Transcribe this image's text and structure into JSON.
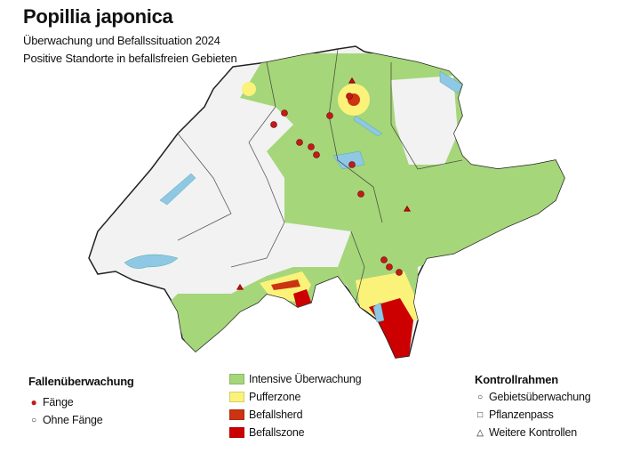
{
  "title": "Popillia japonica",
  "subtitle1": "Überwachung und Befallssituation 2024",
  "subtitle2": "Positive Standorte in befallsfreien Gebieten",
  "colors": {
    "intensive": "#a6d67a",
    "puffer": "#fbf27a",
    "herd": "#cc3311",
    "zone": "#cc0000",
    "white": "#f2f2f2",
    "lake": "#8fc8e4",
    "dot": "#c41a1a"
  },
  "legend": {
    "trap": {
      "heading": "Fallenüberwachung",
      "items": [
        {
          "label": "Fänge",
          "icon": "filled-red-circle"
        },
        {
          "label": "Ohne Fänge",
          "icon": "open-circle"
        }
      ]
    },
    "zones": {
      "items": [
        {
          "label": "Intensive Überwachung",
          "color": "#a6d67a"
        },
        {
          "label": "Pufferzone",
          "color": "#fbf27a"
        },
        {
          "label": "Befallsherd",
          "color": "#cc3311"
        },
        {
          "label": "Befallszone",
          "color": "#cc0000"
        }
      ]
    },
    "control": {
      "heading": "Kontrollrahmen",
      "items": [
        {
          "label": "Gebietsüberwachung",
          "icon": "open-circle"
        },
        {
          "label": "Pflanzenpass",
          "icon": "open-square"
        },
        {
          "label": "Weitere Kontrollen",
          "icon": "open-triangle"
        }
      ]
    }
  }
}
